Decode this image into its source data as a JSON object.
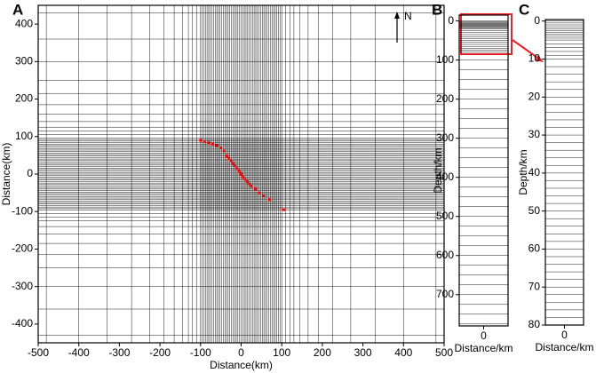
{
  "chart_data": [
    {
      "type": "scatter",
      "panel_label": "A",
      "annotation": "N",
      "x_label": "Distance(km)",
      "y_label": "Distance(km)",
      "xlim": [
        -500,
        500
      ],
      "ylim": [
        -450,
        450
      ],
      "xticks": [
        -500,
        -400,
        -300,
        -200,
        -100,
        0,
        100,
        200,
        300,
        400,
        500
      ],
      "yticks": [
        -400,
        -300,
        -200,
        -100,
        0,
        100,
        200,
        300,
        400
      ],
      "color": "#ff0000",
      "x": [
        -100,
        -90,
        -80,
        -70,
        -60,
        -50,
        -42,
        -35,
        -30,
        -25,
        -20,
        -15,
        -10,
        -5,
        0,
        5,
        10,
        15,
        20,
        25,
        35,
        45,
        55,
        70,
        105
      ],
      "y": [
        90,
        86,
        83,
        80,
        76,
        70,
        62,
        48,
        42,
        35,
        28,
        22,
        15,
        8,
        0,
        -8,
        -14,
        -20,
        -26,
        -32,
        -40,
        -50,
        -58,
        -68,
        -95
      ],
      "mesh_x": [
        -480,
        -400,
        -330,
        -270,
        -225,
        -190,
        -165,
        -145,
        -130,
        -120,
        -110,
        -100,
        -96,
        -92,
        -88,
        -84,
        -80,
        -76,
        -72,
        -68,
        -64,
        -60,
        -56,
        -52,
        -48,
        -44,
        -40,
        -36,
        -32,
        -28,
        -24,
        -20,
        -16,
        -12,
        -8,
        -4,
        0,
        4,
        8,
        12,
        16,
        20,
        24,
        28,
        32,
        36,
        40,
        44,
        48,
        52,
        56,
        60,
        64,
        68,
        72,
        76,
        80,
        84,
        88,
        92,
        96,
        100,
        110,
        120,
        130,
        145,
        165,
        190,
        225,
        270,
        330,
        400,
        480
      ],
      "mesh_y": [
        -430,
        -360,
        -300,
        -250,
        -215,
        -185,
        -160,
        -140,
        -125,
        -115,
        -105,
        -96,
        -92,
        -88,
        -84,
        -80,
        -76,
        -72,
        -68,
        -64,
        -60,
        -56,
        -52,
        -48,
        -44,
        -40,
        -36,
        -32,
        -28,
        -24,
        -20,
        -16,
        -12,
        -8,
        -4,
        0,
        4,
        8,
        12,
        16,
        20,
        24,
        28,
        32,
        36,
        40,
        44,
        48,
        52,
        56,
        60,
        64,
        68,
        72,
        76,
        80,
        84,
        88,
        92,
        96,
        105,
        115,
        125,
        140,
        160,
        185,
        215,
        250,
        300,
        360,
        430
      ]
    },
    {
      "type": "mesh",
      "panel_label": "B",
      "x_label": "Distance/km",
      "y_label": "Depth/km",
      "xlim": [
        -1,
        1
      ],
      "xticks": [
        0
      ],
      "ylim": [
        -15,
        780
      ],
      "yticks": [
        0,
        100,
        200,
        300,
        400,
        500,
        600,
        700
      ],
      "mesh_y": [
        0,
        2,
        4,
        6,
        8,
        10,
        12,
        14,
        16,
        18,
        20,
        25,
        30,
        35,
        40,
        45,
        50,
        55,
        60,
        65,
        70,
        75,
        80,
        100,
        125,
        150,
        175,
        200,
        225,
        250,
        275,
        300,
        325,
        350,
        375,
        400,
        425,
        450,
        475,
        500,
        525,
        550,
        575,
        600,
        625,
        650,
        675,
        700,
        725,
        750,
        775
      ]
    },
    {
      "type": "mesh",
      "panel_label": "C",
      "x_label": "Distance/km",
      "y_label": "Depth/km",
      "xlim": [
        -1,
        1
      ],
      "xticks": [
        0
      ],
      "ylim": [
        -0.4,
        80
      ],
      "yticks": [
        0,
        10,
        20,
        30,
        40,
        50,
        60,
        70,
        80
      ],
      "mesh_y": [
        0,
        0.5,
        1,
        1.5,
        2,
        2.5,
        3,
        3.5,
        4,
        4.5,
        5,
        6,
        7,
        8,
        9,
        10,
        12,
        14,
        16,
        18,
        20,
        22,
        24,
        26,
        28,
        30,
        32,
        34,
        36,
        38,
        40,
        42,
        44,
        46,
        48,
        50,
        52,
        54,
        56,
        58,
        60,
        62,
        64,
        66,
        68,
        70,
        72,
        74,
        76,
        78,
        80
      ]
    }
  ]
}
